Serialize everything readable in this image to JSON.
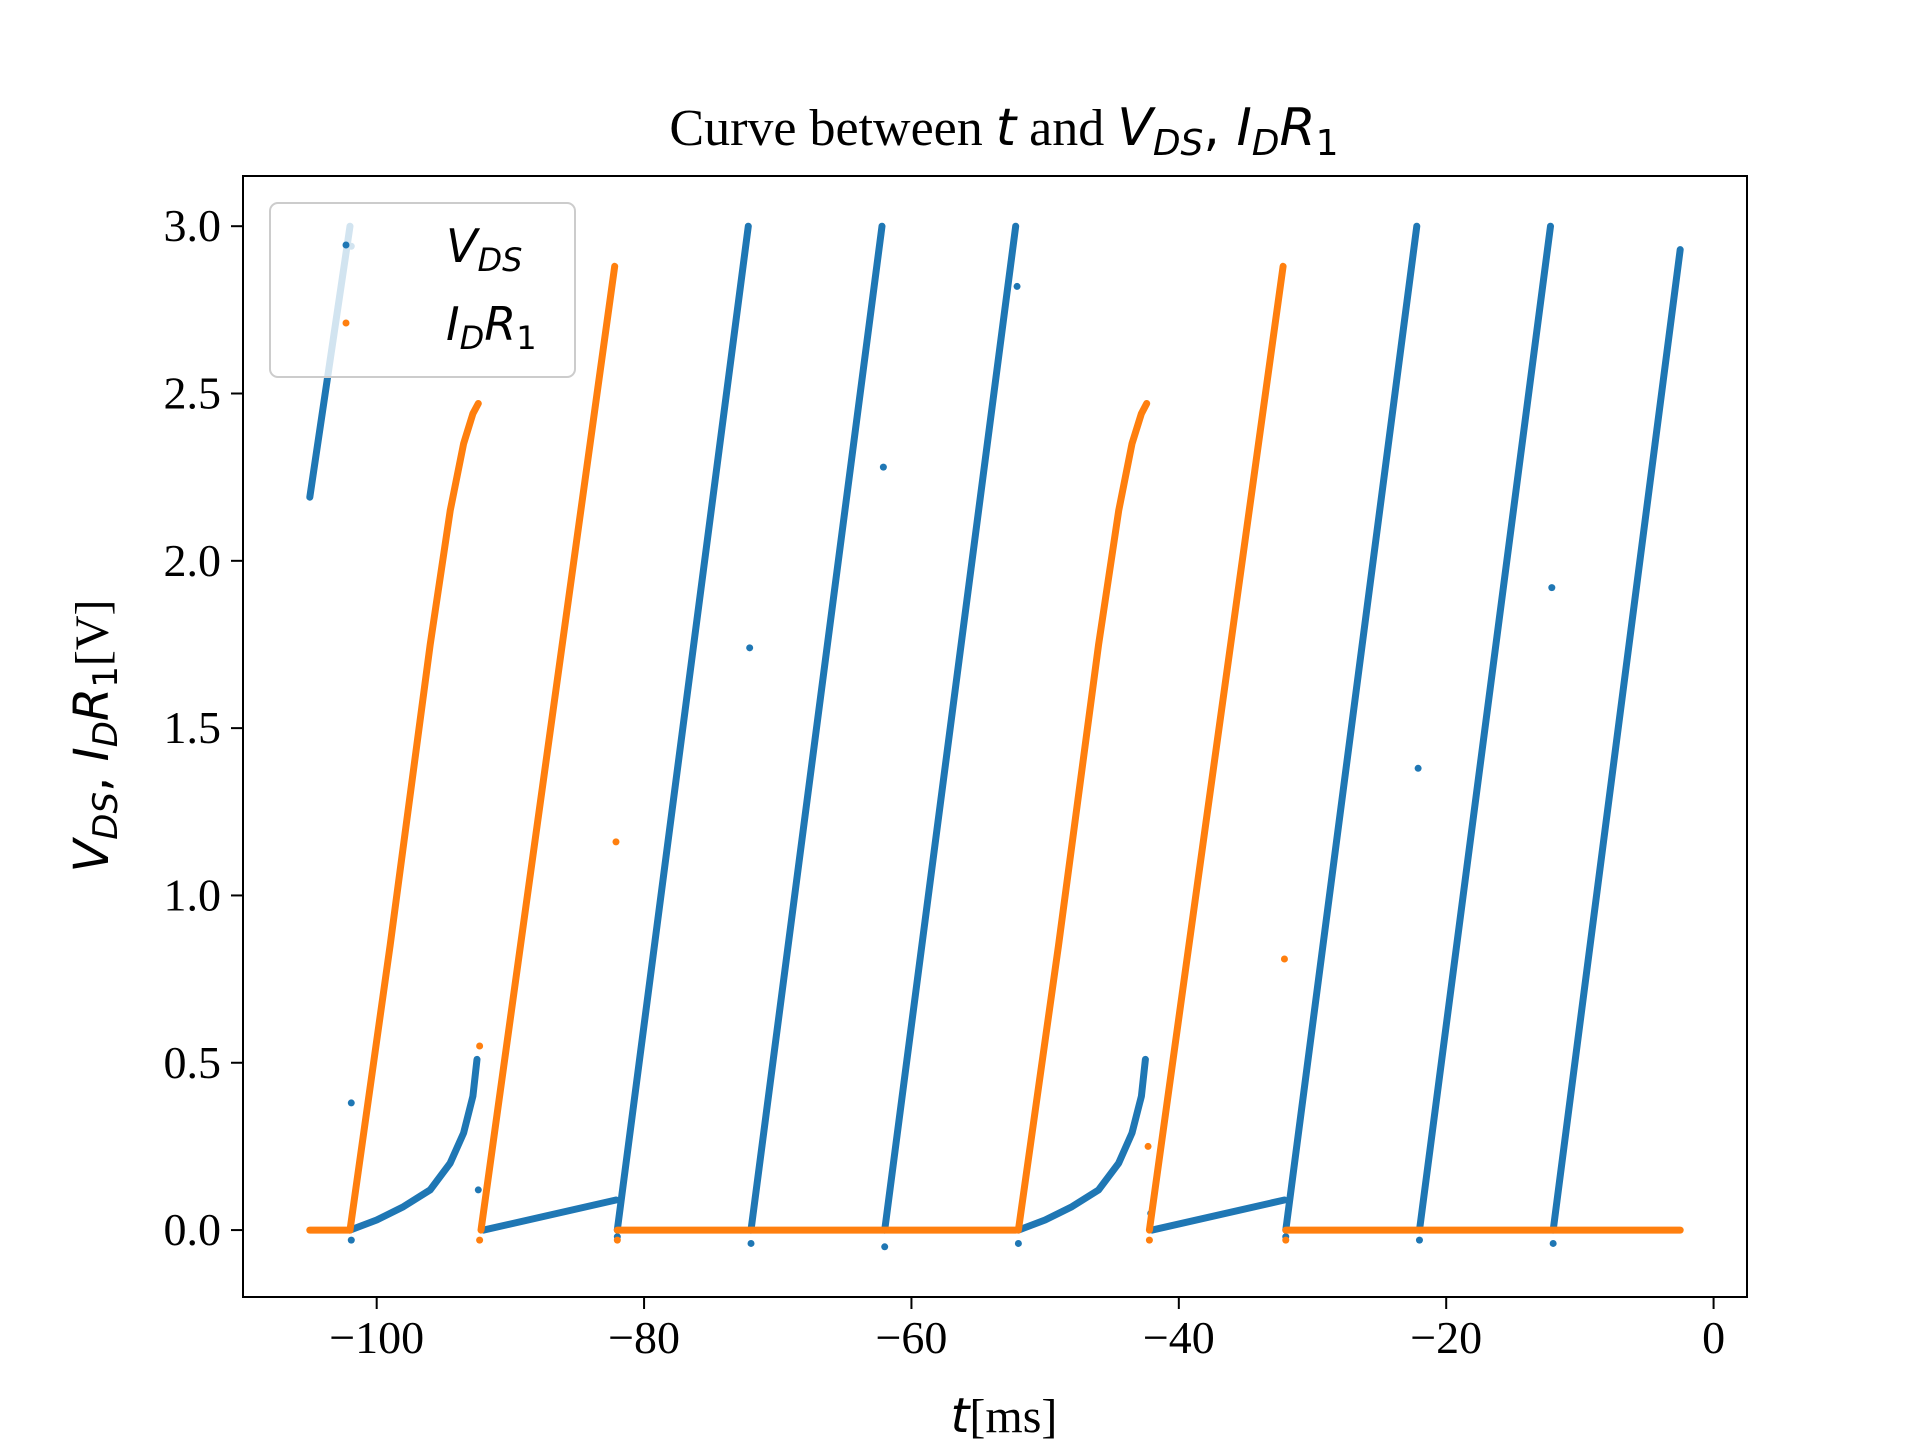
{
  "chart_data": {
    "type": "scatter",
    "title": {
      "prefix": "Curve between ",
      "t": "t",
      "and": " and ",
      "v": "V",
      "v_sub": "DS",
      "comma": ", ",
      "i": "I",
      "i_sub": "D",
      "r": "R",
      "r_sub": "1"
    },
    "xlabel": {
      "t": "t",
      "unit": "[ms]"
    },
    "ylabel": {
      "v": "V",
      "v_sub": "DS",
      "comma": ", ",
      "i": "I",
      "i_sub": "D",
      "r": "R",
      "r_sub": "1",
      "unit": "[V]"
    },
    "xlim": [
      -110,
      2.5
    ],
    "ylim": [
      -0.2,
      3.15
    ],
    "xticks": [
      -100,
      -80,
      -60,
      -40,
      -20,
      0
    ],
    "xtick_labels": [
      "−100",
      "−80",
      "−60",
      "−40",
      "−20",
      "0"
    ],
    "yticks": [
      0.0,
      0.5,
      1.0,
      1.5,
      2.0,
      2.5,
      3.0
    ],
    "ytick_labels": [
      "0.0",
      "0.5",
      "1.0",
      "1.5",
      "2.0",
      "2.5",
      "3.0"
    ],
    "grid": false,
    "legend_position": "top-left",
    "series": [
      {
        "key": "vds",
        "legend": {
          "main": "V",
          "sub": "DS"
        },
        "color": "#1f77b4",
        "segments": [
          {
            "x": [
              -105,
              -102
            ],
            "y": [
              2.19,
              3.0
            ]
          },
          {
            "x": [
              -102,
              -100,
              -98,
              -96,
              -94.5,
              -93.5,
              -92.8,
              -92.5
            ],
            "y": [
              0.0,
              0.03,
              0.07,
              0.12,
              0.2,
              0.29,
              0.4,
              0.51
            ]
          },
          {
            "x": [
              -92,
              -82.1
            ],
            "y": [
              0.0,
              0.09
            ]
          },
          {
            "x": [
              -82,
              -72.2
            ],
            "y": [
              0.0,
              3.0
            ]
          },
          {
            "x": [
              -72,
              -62.2
            ],
            "y": [
              0.0,
              3.0
            ]
          },
          {
            "x": [
              -62,
              -52.2
            ],
            "y": [
              0.0,
              3.0
            ]
          },
          {
            "x": [
              -52,
              -50,
              -48,
              -46,
              -44.5,
              -43.5,
              -42.8,
              -42.5
            ],
            "y": [
              0.0,
              0.03,
              0.07,
              0.12,
              0.2,
              0.29,
              0.4,
              0.51
            ]
          },
          {
            "x": [
              -42,
              -32.1
            ],
            "y": [
              0.0,
              0.09
            ]
          },
          {
            "x": [
              -32,
              -22.2
            ],
            "y": [
              0.0,
              3.0
            ]
          },
          {
            "x": [
              -22,
              -12.2
            ],
            "y": [
              0.0,
              3.0
            ]
          },
          {
            "x": [
              -12,
              -2.5
            ],
            "y": [
              0.0,
              2.93
            ]
          }
        ],
        "outliers": [
          {
            "x": -101.9,
            "y": 2.94
          },
          {
            "x": -101.9,
            "y": 0.38
          },
          {
            "x": -101.9,
            "y": -0.03
          },
          {
            "x": -92.4,
            "y": 0.12
          },
          {
            "x": -82,
            "y": -0.02
          },
          {
            "x": -72.1,
            "y": 1.74
          },
          {
            "x": -72,
            "y": -0.04
          },
          {
            "x": -62.1,
            "y": 2.28
          },
          {
            "x": -62,
            "y": -0.05
          },
          {
            "x": -52.1,
            "y": 2.82
          },
          {
            "x": -52,
            "y": -0.04
          },
          {
            "x": -42.1,
            "y": 0.05
          },
          {
            "x": -32,
            "y": -0.02
          },
          {
            "x": -22.1,
            "y": 1.38
          },
          {
            "x": -22,
            "y": -0.03
          },
          {
            "x": -12.1,
            "y": 1.92
          },
          {
            "x": -12,
            "y": -0.04
          }
        ]
      },
      {
        "key": "idr1",
        "legend": {
          "main": "I",
          "sub": "D",
          "main2": "R",
          "sub2": "1"
        },
        "color": "#ff7f0e",
        "segments": [
          {
            "x": [
              -105,
              -102
            ],
            "y": [
              0.0,
              0.0
            ]
          },
          {
            "x": [
              -102,
              -99,
              -96,
              -94.5,
              -93.5,
              -92.8,
              -92.4
            ],
            "y": [
              0.0,
              0.85,
              1.75,
              2.15,
              2.35,
              2.44,
              2.47
            ]
          },
          {
            "x": [
              -92.2,
              -82.2
            ],
            "y": [
              0.0,
              2.88
            ]
          },
          {
            "x": [
              -82,
              -52.2
            ],
            "y": [
              0.0,
              0.0
            ]
          },
          {
            "x": [
              -52,
              -49,
              -46,
              -44.5,
              -43.5,
              -42.8,
              -42.4
            ],
            "y": [
              0.0,
              0.85,
              1.75,
              2.15,
              2.35,
              2.44,
              2.47
            ]
          },
          {
            "x": [
              -42.2,
              -32.2
            ],
            "y": [
              0.0,
              2.88
            ]
          },
          {
            "x": [
              -32,
              -2.5
            ],
            "y": [
              0.0,
              0.0
            ]
          }
        ],
        "outliers": [
          {
            "x": -92.3,
            "y": 0.55
          },
          {
            "x": -92.3,
            "y": -0.03
          },
          {
            "x": -82.1,
            "y": 1.16
          },
          {
            "x": -82,
            "y": -0.03
          },
          {
            "x": -42.3,
            "y": 0.25
          },
          {
            "x": -42.2,
            "y": -0.03
          },
          {
            "x": -32.1,
            "y": 0.81
          },
          {
            "x": -32,
            "y": -0.03
          }
        ]
      }
    ]
  }
}
